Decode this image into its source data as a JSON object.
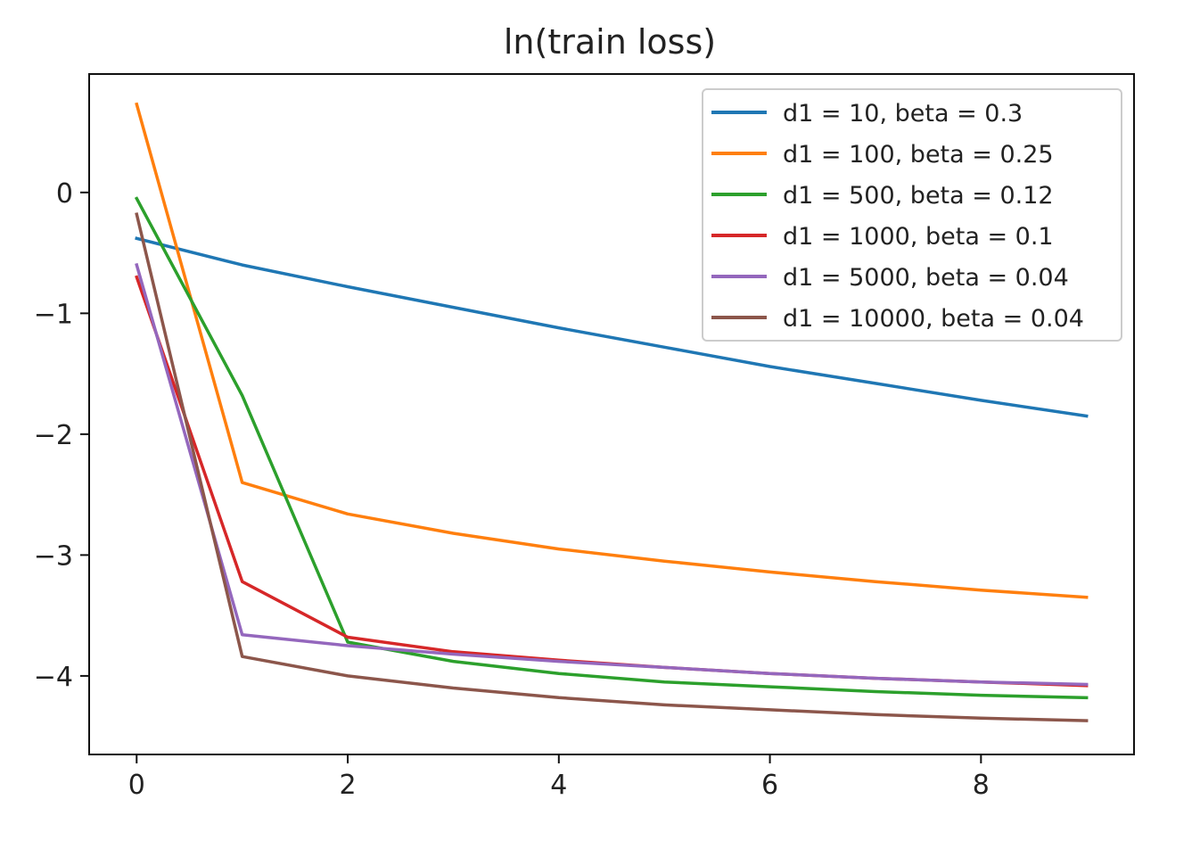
{
  "chart_data": {
    "type": "line",
    "title": "ln(train loss)",
    "xlabel": "",
    "ylabel": "",
    "xlim": [
      -0.45,
      9.45
    ],
    "ylim": [
      -4.65,
      0.98
    ],
    "x": [
      0,
      1,
      2,
      3,
      4,
      5,
      6,
      7,
      8,
      9
    ],
    "xticks": [
      0,
      2,
      4,
      6,
      8
    ],
    "xtick_labels": [
      "0",
      "2",
      "4",
      "6",
      "8"
    ],
    "yticks": [
      0,
      -1,
      -2,
      -3,
      -4
    ],
    "ytick_labels": [
      "0",
      "−1",
      "−2",
      "−3",
      "−4"
    ],
    "grid": false,
    "legend_position": "top-right",
    "series": [
      {
        "name": "d1 = 10, beta = 0.3",
        "color": "#1f77b4",
        "values": [
          -0.38,
          -0.6,
          -0.78,
          -0.95,
          -1.12,
          -1.28,
          -1.44,
          -1.58,
          -1.72,
          -1.85
        ]
      },
      {
        "name": "d1 = 100, beta = 0.25",
        "color": "#ff7f0e",
        "values": [
          0.73,
          -2.4,
          -2.66,
          -2.82,
          -2.95,
          -3.05,
          -3.14,
          -3.22,
          -3.29,
          -3.35
        ]
      },
      {
        "name": "d1 = 500, beta = 0.12",
        "color": "#2ca02c",
        "values": [
          -0.05,
          -1.68,
          -3.72,
          -3.88,
          -3.98,
          -4.05,
          -4.09,
          -4.13,
          -4.16,
          -4.18
        ]
      },
      {
        "name": "d1 = 1000, beta = 0.1",
        "color": "#d62728",
        "values": [
          -0.7,
          -3.22,
          -3.68,
          -3.8,
          -3.87,
          -3.93,
          -3.98,
          -4.02,
          -4.05,
          -4.08
        ]
      },
      {
        "name": "d1 = 5000, beta = 0.04",
        "color": "#9467bd",
        "values": [
          -0.6,
          -3.66,
          -3.75,
          -3.82,
          -3.88,
          -3.93,
          -3.98,
          -4.02,
          -4.05,
          -4.07
        ]
      },
      {
        "name": "d1 = 10000, beta = 0.04",
        "color": "#8c564b",
        "values": [
          -0.18,
          -3.84,
          -4.0,
          -4.1,
          -4.18,
          -4.24,
          -4.28,
          -4.32,
          -4.35,
          -4.37
        ]
      }
    ]
  }
}
